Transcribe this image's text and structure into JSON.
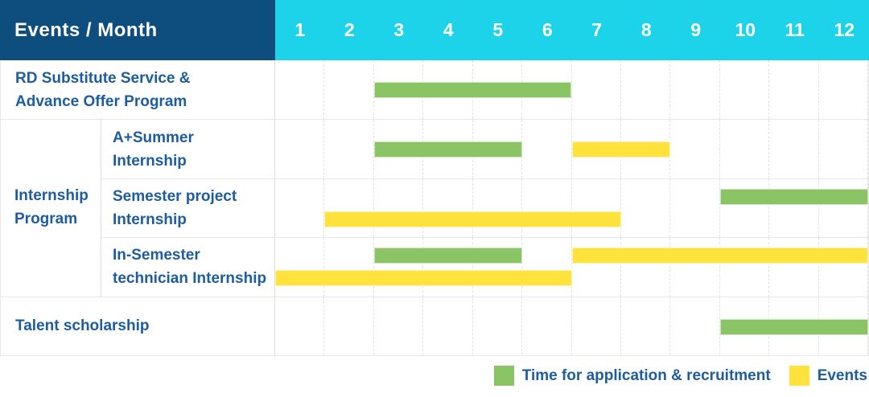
{
  "header": {
    "label_column": "Events / Month",
    "months": [
      "1",
      "2",
      "3",
      "4",
      "5",
      "6",
      "7",
      "8",
      "9",
      "10",
      "11",
      "12"
    ]
  },
  "colors": {
    "header_bg": "#0d4e7e",
    "months_bg": "#1cd3ea",
    "application": "#8bc464",
    "event": "#ffe33c",
    "text": "#1d5c9e",
    "grid": "#e2e2e2"
  },
  "chart_data": {
    "type": "gantt",
    "unit": "month",
    "axis_months": [
      1,
      2,
      3,
      4,
      5,
      6,
      7,
      8,
      9,
      10,
      11,
      12
    ],
    "series_legend": [
      {
        "key": "application",
        "label": "Time for application & recruitment",
        "color": "#8bc464"
      },
      {
        "key": "event",
        "label": "Events",
        "color": "#ffe33c"
      }
    ],
    "groups": [
      {
        "label": "Internship Program",
        "row_start": 1,
        "row_span": 3
      }
    ],
    "rows": [
      {
        "label_lines": [
          "RD Substitute Service &",
          "Advance Offer Program"
        ],
        "grouped": false,
        "bars": [
          {
            "series": "application",
            "start_month": 3,
            "end_month": 6,
            "line": "center"
          }
        ]
      },
      {
        "label_lines": [
          "A+Summer",
          "Internship"
        ],
        "grouped": true,
        "bars": [
          {
            "series": "application",
            "start_month": 3,
            "end_month": 5,
            "line": "center"
          },
          {
            "series": "event",
            "start_month": 7,
            "end_month": 8,
            "line": "center"
          }
        ]
      },
      {
        "label_lines": [
          "Semester project",
          "Internship"
        ],
        "grouped": true,
        "bars": [
          {
            "series": "application",
            "start_month": 10,
            "end_month": 12,
            "line": "top"
          },
          {
            "series": "event",
            "start_month": 2,
            "end_month": 7,
            "line": "bottom"
          }
        ]
      },
      {
        "label_lines": [
          "In-Semester",
          "technician Internship"
        ],
        "grouped": true,
        "bars": [
          {
            "series": "application",
            "start_month": 3,
            "end_month": 5,
            "line": "top"
          },
          {
            "series": "event",
            "start_month": 7,
            "end_month": 12,
            "line": "top"
          },
          {
            "series": "event",
            "start_month": 1,
            "end_month": 6,
            "line": "bottom"
          }
        ]
      },
      {
        "label_lines": [
          "Talent scholarship"
        ],
        "grouped": false,
        "bars": [
          {
            "series": "application",
            "start_month": 10,
            "end_month": 12,
            "line": "center"
          }
        ]
      }
    ]
  }
}
